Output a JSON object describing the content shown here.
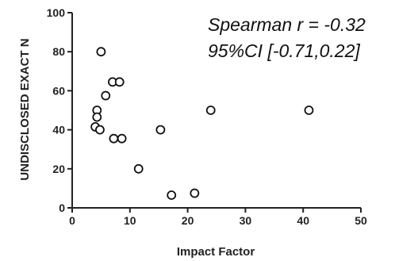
{
  "chart_data": {
    "type": "scatter",
    "xlabel": "Impact Factor",
    "ylabel": "UNDISCLOSED EXACT N",
    "xlim": [
      0,
      50
    ],
    "ylim": [
      0,
      100
    ],
    "x_ticks": [
      "0",
      "10",
      "20",
      "30",
      "40",
      "50"
    ],
    "y_ticks": [
      "0",
      "20",
      "40",
      "60",
      "80",
      "100"
    ],
    "grid": false,
    "annotations": [
      "Spearman r = -0.32",
      "95%CI  [-0.71,0.22]"
    ],
    "points": [
      {
        "x": 5.0,
        "y": 80
      },
      {
        "x": 7.0,
        "y": 64.5
      },
      {
        "x": 8.2,
        "y": 64.5
      },
      {
        "x": 5.8,
        "y": 57.5
      },
      {
        "x": 4.3,
        "y": 50
      },
      {
        "x": 4.3,
        "y": 46.5
      },
      {
        "x": 4.0,
        "y": 41.5
      },
      {
        "x": 4.8,
        "y": 40
      },
      {
        "x": 7.2,
        "y": 35.5
      },
      {
        "x": 8.6,
        "y": 35.5
      },
      {
        "x": 11.5,
        "y": 20
      },
      {
        "x": 15.3,
        "y": 40
      },
      {
        "x": 17.2,
        "y": 6.5
      },
      {
        "x": 21.2,
        "y": 7.5
      },
      {
        "x": 24.0,
        "y": 50
      },
      {
        "x": 41.0,
        "y": 50
      }
    ]
  }
}
